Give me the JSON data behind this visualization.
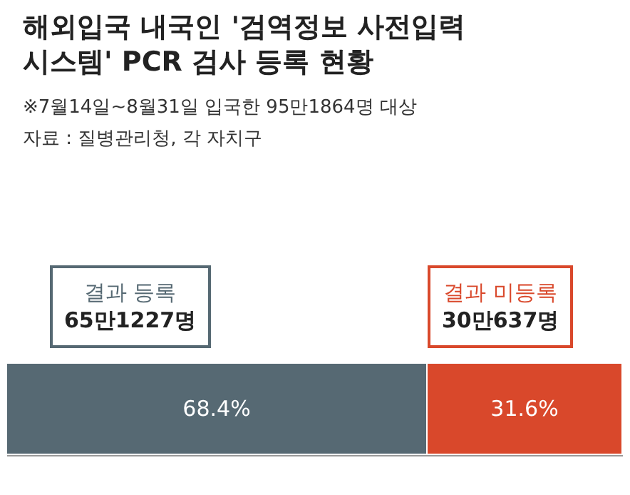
{
  "chart_data": {
    "type": "bar",
    "orientation": "horizontal",
    "stacked": true,
    "title": "해외입국 내국인 '검역정보 사전입력\n시스템' PCR 검사 등록 현황",
    "subtitle": "※7월14일~8월31일 입국한 95만1864명 대상",
    "annotations": [
      "자료 : 질병관리청, 각 자치구",
      "65만1227명",
      "30만637명"
    ],
    "categories": [
      null
    ],
    "series": [
      {
        "name": "결과 등록",
        "color": "#566973",
        "values": [
          68.4
        ],
        "value_labels": [
          "68.4%"
        ]
      },
      {
        "name": "결과 미등록",
        "color": "#d9482b",
        "values": [
          31.6
        ],
        "value_labels": [
          "31.6%"
        ]
      }
    ],
    "xlim": [
      0,
      100
    ],
    "tick_labels": false,
    "legend": false
  }
}
